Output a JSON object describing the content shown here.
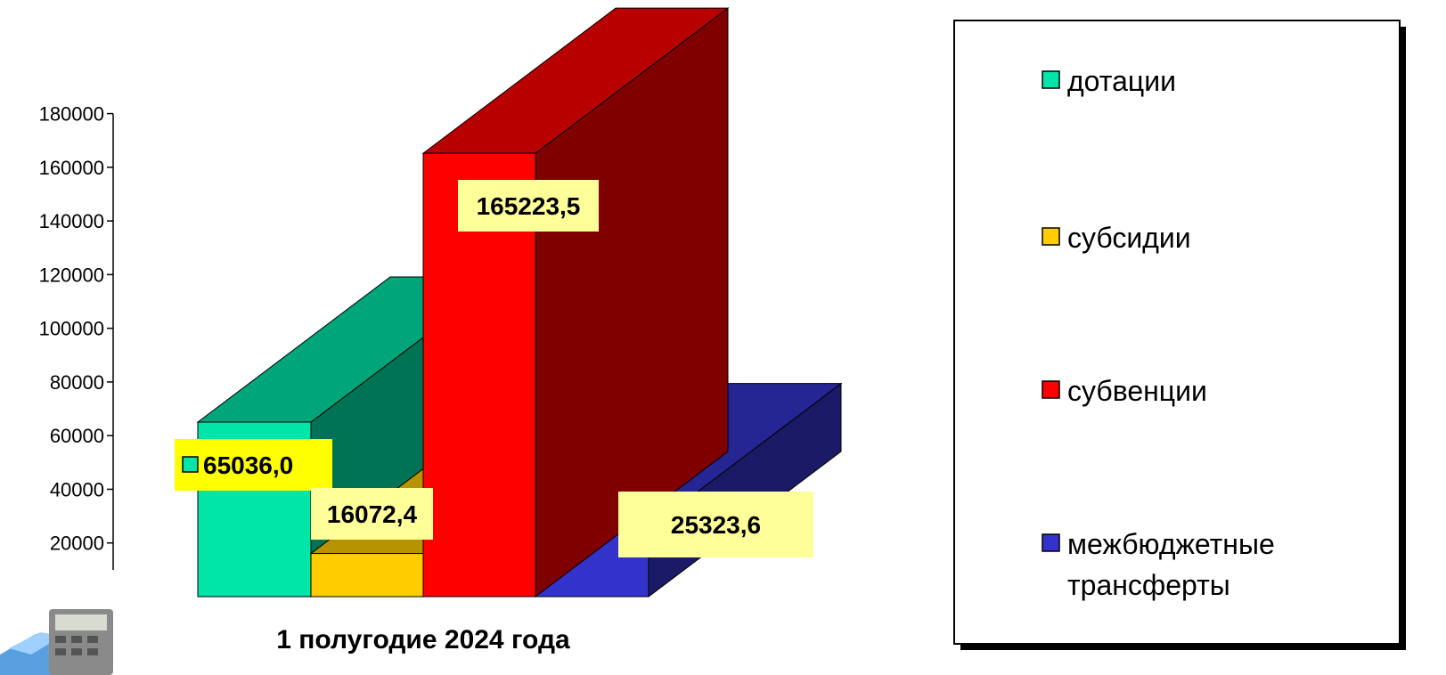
{
  "chart_data": {
    "type": "bar",
    "categories": [
      "1 полугодие 2024 года"
    ],
    "series": [
      {
        "name": "дотации",
        "values": [
          65036.0
        ],
        "label": "65036,0",
        "color": "#00E5A8"
      },
      {
        "name": "субсидии",
        "values": [
          16072.4
        ],
        "label": "16072,4",
        "color": "#FFCC00"
      },
      {
        "name": "субвенции",
        "values": [
          165223.5
        ],
        "label": "165223,5",
        "color": "#FF0000"
      },
      {
        "name": "межбюджетные трансферты",
        "values": [
          25323.6
        ],
        "label": "25323,6",
        "color": "#3333CC"
      }
    ],
    "yticks": [
      "20000",
      "40000",
      "60000",
      "80000",
      "100000",
      "120000",
      "140000",
      "160000",
      "180000"
    ],
    "ylim": [
      0,
      180000
    ],
    "legend_position": "right",
    "grid": false,
    "style": "3d-bar"
  },
  "legend": {
    "line1": [
      "дотации",
      "субсидии",
      "субвенции",
      "межбюджетные"
    ],
    "line2": [
      "",
      "",
      "",
      "трансферты"
    ]
  }
}
